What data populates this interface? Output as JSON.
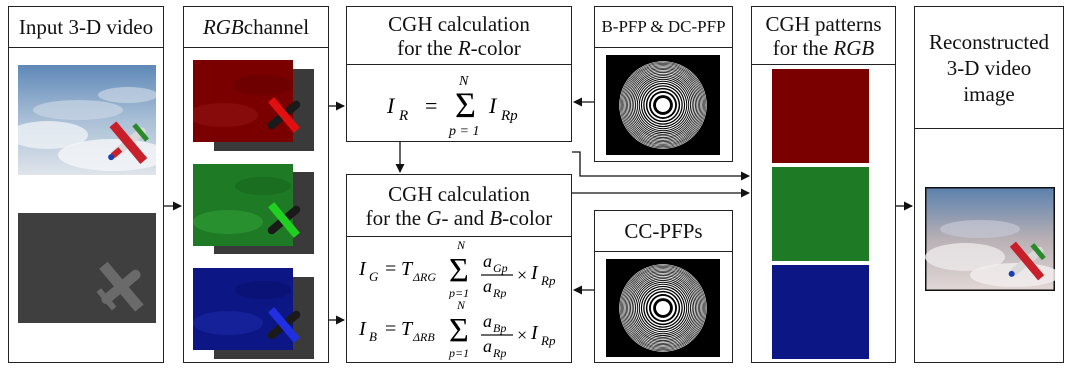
{
  "input": {
    "title": "Input 3-D video"
  },
  "rgb": {
    "title_italic": "RGB",
    "title_rest": " channel"
  },
  "cgh_r": {
    "line1": "CGH calculation",
    "line2_pre": "for the ",
    "line2_ital": "R",
    "line2_post": "-color"
  },
  "bpfp": {
    "title": "B-PFP & DC-PFP"
  },
  "cgh_gb": {
    "line1": "CGH calculation",
    "line2_pre": "for the ",
    "line2_g": "G",
    "line2_mid": "- and ",
    "line2_b": "B",
    "line2_post": "-color"
  },
  "ccpfp": {
    "title": "CC-PFPs"
  },
  "patterns": {
    "line1": "CGH patterns",
    "line2_pre": "for the ",
    "line2_ital": "RGB"
  },
  "recon": {
    "line1": "Reconstructed",
    "line2": "3-D video",
    "line3": "image"
  },
  "formula_r": {
    "lhs": "I",
    "lhs_sub": "R",
    "eq": "=",
    "sum_top": "N",
    "sum_bot": "p = 1",
    "term": "I",
    "term_sub": "Rp"
  },
  "formula_g": {
    "lhs": "I",
    "lhs_sub": "G",
    "eq": "=",
    "t": "T",
    "t_sub": "ΔRG",
    "sum_top": "N",
    "sum_bot": "p=1",
    "num": "a",
    "num_sub": "Gp",
    "den": "a",
    "den_sub": "Rp",
    "times": "×",
    "term": "I",
    "term_sub": "Rp"
  },
  "formula_b": {
    "lhs": "I",
    "lhs_sub": "B",
    "eq": "=",
    "t": "T",
    "t_sub": "ΔRB",
    "sum_top": "N",
    "sum_bot": "p=1",
    "num": "a",
    "num_sub": "Bp",
    "den": "a",
    "den_sub": "Rp",
    "times": "×",
    "term": "I",
    "term_sub": "Rp"
  },
  "colors": {
    "red": "#7a0000",
    "green": "#1f7a25",
    "blue": "#0c1685",
    "gray": "#3f3f3f"
  },
  "icons": [
    "airplane-icon",
    "zone-plate-icon",
    "sky-image-icon"
  ]
}
